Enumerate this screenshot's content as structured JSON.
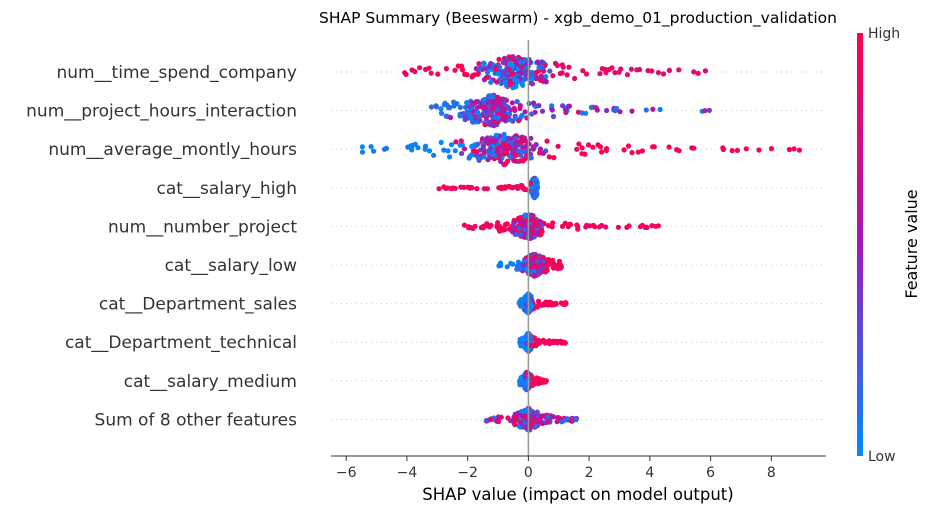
{
  "chart_data": {
    "type": "scatter",
    "subtype": "beeswarm",
    "title": "SHAP Summary (Beeswarm) - xgb_demo_01_production_validation",
    "xlabel": "SHAP value (impact on model output)",
    "ylabel": "",
    "xlim": [
      -6.5,
      9.8
    ],
    "xticks": [
      -6,
      -4,
      -2,
      0,
      2,
      4,
      6,
      8
    ],
    "xtick_labels": [
      "−6",
      "−4",
      "−2",
      "0",
      "2",
      "4",
      "6",
      "8"
    ],
    "grid": false,
    "colorbar": {
      "label": "Feature value",
      "high_label": "High",
      "low_label": "Low",
      "low_color": "#008afb",
      "mid_color": "#9f1bb7",
      "high_color": "#ff0051"
    },
    "features": [
      {
        "name": "num__time_spend_company",
        "min": -4.5,
        "max": 6.0,
        "center": -0.5,
        "width": 1.3,
        "height": 1.0,
        "tail_pos": "high",
        "tail_neg": "high",
        "tail_color_pos": 0.85,
        "tail_color_neg": 0.95,
        "core_color": 0.25
      },
      {
        "name": "num__project_hours_interaction",
        "min": -3.2,
        "max": 6.1,
        "center": -1.2,
        "width": 1.1,
        "height": 1.0,
        "tail_pos": "mix",
        "tail_neg": "low",
        "tail_color_pos": 0.55,
        "tail_color_neg": 0.1,
        "core_color": 0.45
      },
      {
        "name": "num__average_montly_hours",
        "min": -5.6,
        "max": 9.0,
        "center": -0.8,
        "width": 1.4,
        "height": 1.0,
        "tail_pos": "high",
        "tail_neg": "low",
        "tail_color_pos": 0.95,
        "tail_color_neg": 0.05,
        "core_color": 0.55
      },
      {
        "name": "cat__salary_high",
        "min": -3.0,
        "max": 0.3,
        "center": 0.2,
        "width": 0.08,
        "height": 0.6,
        "tail_pos": "low",
        "tail_neg": "high",
        "tail_color_pos": 0.05,
        "tail_color_neg": 0.95,
        "core_color": 0.05
      },
      {
        "name": "num__number_project",
        "min": -2.2,
        "max": 4.3,
        "center": 0.0,
        "width": 0.5,
        "height": 0.8,
        "tail_pos": "high",
        "tail_neg": "high",
        "tail_color_pos": 0.95,
        "tail_color_neg": 0.95,
        "core_color": 0.45
      },
      {
        "name": "cat__salary_low",
        "min": -1.1,
        "max": 1.1,
        "center": 0.2,
        "width": 0.4,
        "height": 0.7,
        "tail_pos": "high",
        "tail_neg": "low",
        "tail_color_pos": 0.95,
        "tail_color_neg": 0.05,
        "core_color": 0.6
      },
      {
        "name": "cat__Department_sales",
        "min": -0.3,
        "max": 1.3,
        "center": 0.0,
        "width": 0.12,
        "height": 0.6,
        "tail_pos": "high",
        "tail_neg": "low",
        "tail_color_pos": 0.95,
        "tail_color_neg": 0.05,
        "core_color": 0.05
      },
      {
        "name": "cat__Department_technical",
        "min": -0.3,
        "max": 1.3,
        "center": 0.0,
        "width": 0.08,
        "height": 0.55,
        "tail_pos": "high",
        "tail_neg": "low",
        "tail_color_pos": 0.95,
        "tail_color_neg": 0.05,
        "core_color": 0.05
      },
      {
        "name": "cat__salary_medium",
        "min": -0.3,
        "max": 0.6,
        "center": -0.05,
        "width": 0.08,
        "height": 0.55,
        "tail_pos": "high",
        "tail_neg": "low",
        "tail_color_pos": 0.95,
        "tail_color_neg": 0.05,
        "core_color": 0.05
      },
      {
        "name": "Sum of 8 other features",
        "min": -1.4,
        "max": 1.6,
        "center": 0.0,
        "width": 0.35,
        "height": 0.7,
        "tail_pos": "mix",
        "tail_neg": "mix",
        "tail_color_pos": 0.4,
        "tail_color_neg": 0.3,
        "core_color": 0.4
      }
    ]
  }
}
